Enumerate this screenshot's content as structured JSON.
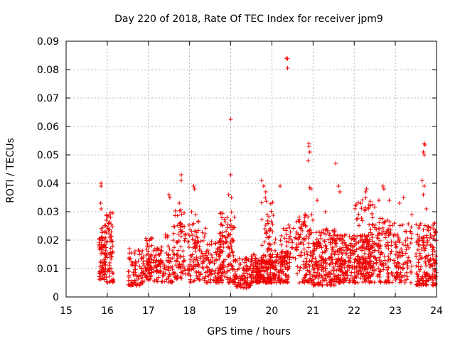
{
  "chart_data": {
    "type": "scatter",
    "title": "Day 220 of 2018, Rate Of TEC Index for receiver jpm9",
    "xlabel": "GPS time / hours",
    "ylabel": "ROTI / TECUs",
    "xlim": [
      15,
      24
    ],
    "ylim": [
      0,
      0.09
    ],
    "x_ticks": [
      15,
      16,
      17,
      18,
      19,
      20,
      21,
      22,
      23,
      24
    ],
    "x_tick_labels": [
      "15",
      "16",
      "17",
      "18",
      "19",
      "20",
      "21",
      "22",
      "23",
      "24"
    ],
    "y_ticks": [
      0,
      0.01,
      0.02,
      0.03,
      0.04,
      0.05,
      0.06,
      0.07,
      0.08,
      0.09
    ],
    "y_tick_labels": [
      "0",
      "0.01",
      "0.02",
      "0.03",
      "0.04",
      "0.05",
      "0.06",
      "0.07",
      "0.08",
      "0.09"
    ],
    "grid": true,
    "marker": "+",
    "color": "#ee0000",
    "clusters": [
      {
        "x": [
          15.8,
          15.95
        ],
        "y": [
          0.006,
          0.026
        ],
        "n": 70
      },
      {
        "x": [
          15.95,
          16.15
        ],
        "y": [
          0.005,
          0.03
        ],
        "n": 70
      },
      {
        "x": [
          16.5,
          16.9
        ],
        "y": [
          0.004,
          0.017
        ],
        "n": 80
      },
      {
        "x": [
          16.9,
          17.1
        ],
        "y": [
          0.006,
          0.021
        ],
        "n": 60
      },
      {
        "x": [
          17.1,
          17.4
        ],
        "y": [
          0.005,
          0.018
        ],
        "n": 60
      },
      {
        "x": [
          17.4,
          17.6
        ],
        "y": [
          0.005,
          0.022
        ],
        "n": 40
      },
      {
        "x": [
          17.6,
          17.9
        ],
        "y": [
          0.006,
          0.032
        ],
        "n": 80
      },
      {
        "x": [
          17.95,
          18.4
        ],
        "y": [
          0.005,
          0.027
        ],
        "n": 110
      },
      {
        "x": [
          18.4,
          18.8
        ],
        "y": [
          0.005,
          0.02
        ],
        "n": 80
      },
      {
        "x": [
          18.7,
          19.1
        ],
        "y": [
          0.005,
          0.03
        ],
        "n": 130
      },
      {
        "x": [
          19.1,
          19.5
        ],
        "y": [
          0.003,
          0.014
        ],
        "n": 90
      },
      {
        "x": [
          19.5,
          20.0
        ],
        "y": [
          0.005,
          0.015
        ],
        "n": 160
      },
      {
        "x": [
          19.7,
          20.1
        ],
        "y": [
          0.01,
          0.035
        ],
        "n": 60
      },
      {
        "x": [
          20.0,
          20.4
        ],
        "y": [
          0.005,
          0.016
        ],
        "n": 100
      },
      {
        "x": [
          20.2,
          20.6
        ],
        "y": [
          0.01,
          0.026
        ],
        "n": 50
      },
      {
        "x": [
          20.6,
          21.0
        ],
        "y": [
          0.005,
          0.03
        ],
        "n": 110
      },
      {
        "x": [
          21.0,
          21.6
        ],
        "y": [
          0.004,
          0.024
        ],
        "n": 210
      },
      {
        "x": [
          21.6,
          22.4
        ],
        "y": [
          0.005,
          0.022
        ],
        "n": 260
      },
      {
        "x": [
          22.0,
          22.5
        ],
        "y": [
          0.01,
          0.036
        ],
        "n": 70
      },
      {
        "x": [
          22.4,
          22.9
        ],
        "y": [
          0.005,
          0.028
        ],
        "n": 130
      },
      {
        "x": [
          22.9,
          23.4
        ],
        "y": [
          0.005,
          0.026
        ],
        "n": 110
      },
      {
        "x": [
          23.5,
          24.0
        ],
        "y": [
          0.004,
          0.026
        ],
        "n": 170
      }
    ],
    "points": [
      [
        15.85,
        0.04
      ],
      [
        15.85,
        0.039
      ],
      [
        15.84,
        0.033
      ],
      [
        15.85,
        0.031
      ],
      [
        16.05,
        0.029
      ],
      [
        16.08,
        0.028
      ],
      [
        17.5,
        0.036
      ],
      [
        17.52,
        0.035
      ],
      [
        17.8,
        0.043
      ],
      [
        17.8,
        0.041
      ],
      [
        17.75,
        0.033
      ],
      [
        18.1,
        0.039
      ],
      [
        18.12,
        0.038
      ],
      [
        18.05,
        0.03
      ],
      [
        18.15,
        0.029
      ],
      [
        19.0,
        0.0625
      ],
      [
        19.0,
        0.043
      ],
      [
        18.95,
        0.036
      ],
      [
        19.02,
        0.035
      ],
      [
        19.75,
        0.041
      ],
      [
        19.8,
        0.039
      ],
      [
        19.85,
        0.037
      ],
      [
        20.2,
        0.039
      ],
      [
        20.35,
        0.084
      ],
      [
        20.38,
        0.0838
      ],
      [
        20.38,
        0.0805
      ],
      [
        20.9,
        0.054
      ],
      [
        20.9,
        0.053
      ],
      [
        20.92,
        0.051
      ],
      [
        20.88,
        0.048
      ],
      [
        20.95,
        0.038
      ],
      [
        20.92,
        0.0385
      ],
      [
        21.1,
        0.034
      ],
      [
        21.3,
        0.03
      ],
      [
        21.55,
        0.047
      ],
      [
        21.62,
        0.039
      ],
      [
        21.65,
        0.037
      ],
      [
        22.3,
        0.038
      ],
      [
        22.28,
        0.037
      ],
      [
        22.6,
        0.034
      ],
      [
        22.7,
        0.039
      ],
      [
        22.72,
        0.038
      ],
      [
        22.85,
        0.034
      ],
      [
        23.1,
        0.033
      ],
      [
        23.2,
        0.035
      ],
      [
        23.4,
        0.029
      ],
      [
        23.7,
        0.054
      ],
      [
        23.72,
        0.0535
      ],
      [
        23.68,
        0.051
      ],
      [
        23.7,
        0.05
      ],
      [
        23.65,
        0.041
      ],
      [
        23.7,
        0.039
      ],
      [
        23.68,
        0.036
      ],
      [
        23.75,
        0.031
      ],
      [
        23.95,
        0.026
      ]
    ]
  }
}
